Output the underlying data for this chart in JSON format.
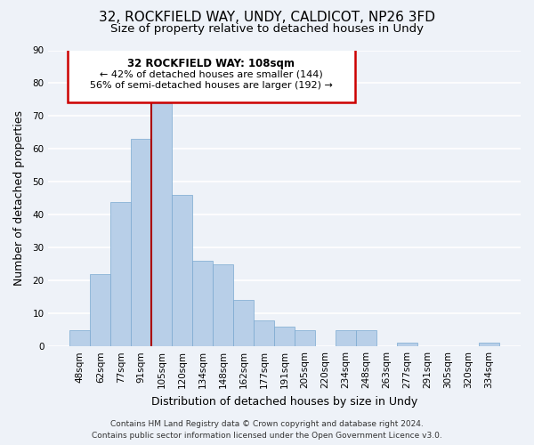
{
  "title": "32, ROCKFIELD WAY, UNDY, CALDICOT, NP26 3FD",
  "subtitle": "Size of property relative to detached houses in Undy",
  "xlabel": "Distribution of detached houses by size in Undy",
  "ylabel": "Number of detached properties",
  "bar_labels": [
    "48sqm",
    "62sqm",
    "77sqm",
    "91sqm",
    "105sqm",
    "120sqm",
    "134sqm",
    "148sqm",
    "162sqm",
    "177sqm",
    "191sqm",
    "205sqm",
    "220sqm",
    "234sqm",
    "248sqm",
    "263sqm",
    "277sqm",
    "291sqm",
    "305sqm",
    "320sqm",
    "334sqm"
  ],
  "bar_values": [
    5,
    22,
    44,
    63,
    74,
    46,
    26,
    25,
    14,
    8,
    6,
    5,
    0,
    5,
    5,
    0,
    1,
    0,
    0,
    0,
    1
  ],
  "bar_color": "#b8cfe8",
  "highlight_bar_index": 4,
  "highlight_line_color": "#aa0000",
  "ylim": [
    0,
    90
  ],
  "yticks": [
    0,
    10,
    20,
    30,
    40,
    50,
    60,
    70,
    80,
    90
  ],
  "annotation_title": "32 ROCKFIELD WAY: 108sqm",
  "annotation_line1": "← 42% of detached houses are smaller (144)",
  "annotation_line2": "56% of semi-detached houses are larger (192) →",
  "annotation_box_color": "#ffffff",
  "annotation_box_edge": "#cc0000",
  "footer_line1": "Contains HM Land Registry data © Crown copyright and database right 2024.",
  "footer_line2": "Contains public sector information licensed under the Open Government Licence v3.0.",
  "background_color": "#eef2f8",
  "grid_color": "#ffffff",
  "title_fontsize": 11,
  "subtitle_fontsize": 9.5,
  "axis_label_fontsize": 9,
  "tick_fontsize": 7.5,
  "footer_fontsize": 6.5
}
